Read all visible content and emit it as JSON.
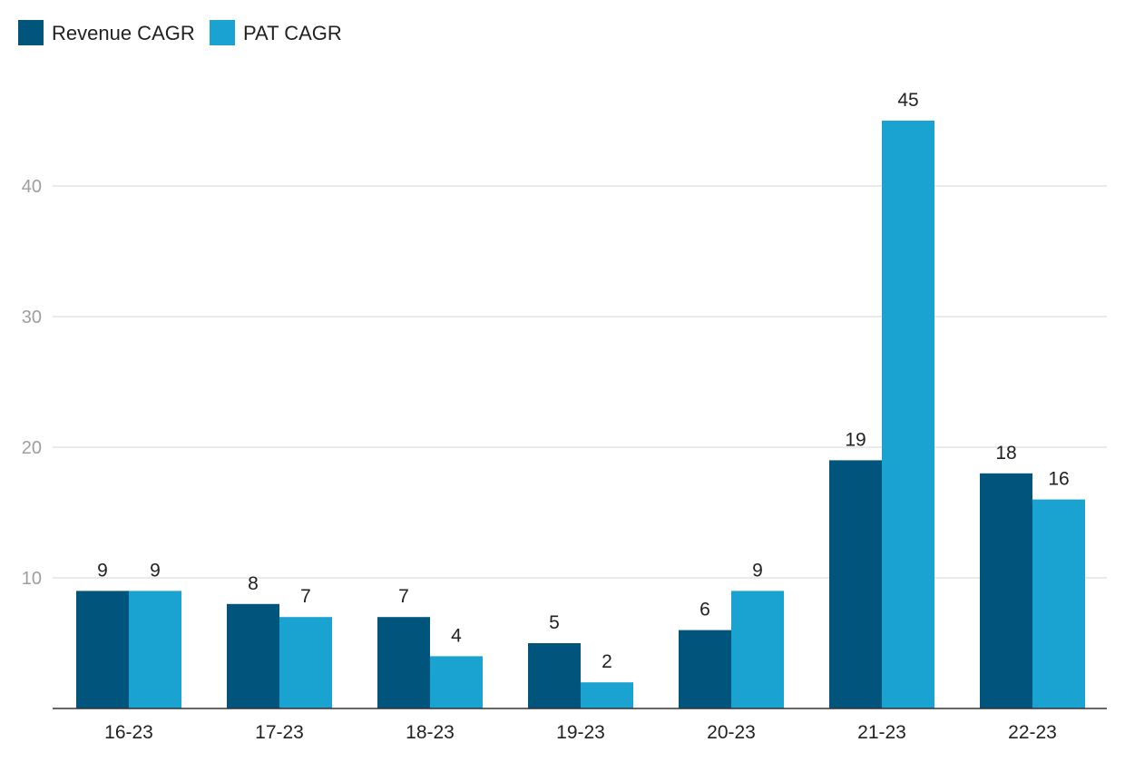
{
  "chart_data": {
    "type": "bar",
    "title": "",
    "xlabel": "",
    "ylabel": "",
    "categories": [
      "16-23",
      "17-23",
      "18-23",
      "19-23",
      "20-23",
      "21-23",
      "22-23"
    ],
    "series": [
      {
        "name": "Revenue CAGR",
        "color": "#01557c",
        "values": [
          9,
          8,
          7,
          5,
          6,
          19,
          18
        ]
      },
      {
        "name": "PAT CAGR",
        "color": "#1aa2d0",
        "values": [
          9,
          7,
          4,
          2,
          9,
          45,
          16
        ]
      }
    ],
    "ylim": [
      0,
      45
    ],
    "yticks": [
      10,
      20,
      30,
      40
    ],
    "grid": true,
    "legend_position": "top-left",
    "data_labels": true
  }
}
